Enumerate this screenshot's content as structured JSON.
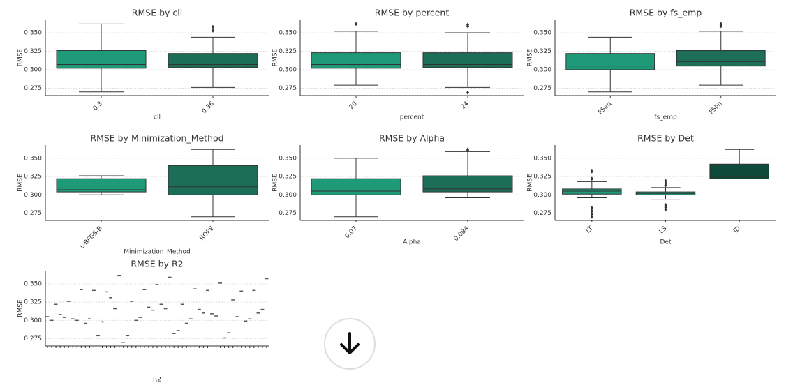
{
  "chart_data": [
    {
      "type": "box",
      "title": "RMSE by cll",
      "xlabel": "cll",
      "ylabel": "RMSE",
      "categories": [
        "0.3",
        "0.36"
      ],
      "colors": [
        "#1f9a78",
        "#1c6e56"
      ],
      "boxes": [
        {
          "whislo": 0.27,
          "q1": 0.302,
          "med": 0.307,
          "q3": 0.326,
          "whishi": 0.362,
          "fliers": []
        },
        {
          "whislo": 0.276,
          "q1": 0.303,
          "med": 0.307,
          "q3": 0.322,
          "whishi": 0.344,
          "fliers": [
            0.353,
            0.358
          ]
        }
      ],
      "ylim": [
        0.265,
        0.368
      ],
      "yticks": [
        0.275,
        {
          "value": 0.3,
          "label": "0.300"
        },
        0.325,
        {
          "value": 0.35,
          "label": "0.350"
        }
      ],
      "grid": true
    },
    {
      "type": "box",
      "title": "RMSE by percent",
      "xlabel": "percent",
      "ylabel": "RMSE",
      "categories": [
        "20",
        "24"
      ],
      "colors": [
        "#1f9a78",
        "#1c6e56"
      ],
      "boxes": [
        {
          "whislo": 0.279,
          "q1": 0.302,
          "med": 0.307,
          "q3": 0.323,
          "whishi": 0.352,
          "fliers": [
            0.362
          ]
        },
        {
          "whislo": 0.276,
          "q1": 0.303,
          "med": 0.307,
          "q3": 0.323,
          "whishi": 0.35,
          "fliers": [
            0.269,
            0.359,
            0.361
          ]
        }
      ],
      "ylim": [
        0.265,
        0.368
      ],
      "yticks": [
        0.275,
        {
          "value": 0.3,
          "label": "0.300"
        },
        0.325,
        {
          "value": 0.35,
          "label": "0.350"
        }
      ],
      "grid": true
    },
    {
      "type": "box",
      "title": "RMSE by fs_emp",
      "xlabel": "fs_emp",
      "ylabel": "RMSE",
      "categories": [
        "FSeq",
        "FSlin"
      ],
      "colors": [
        "#1f9a78",
        "#1c6e56"
      ],
      "boxes": [
        {
          "whislo": 0.27,
          "q1": 0.3,
          "med": 0.305,
          "q3": 0.322,
          "whishi": 0.344,
          "fliers": []
        },
        {
          "whislo": 0.279,
          "q1": 0.305,
          "med": 0.311,
          "q3": 0.326,
          "whishi": 0.352,
          "fliers": [
            0.359,
            0.361,
            0.362
          ]
        }
      ],
      "ylim": [
        0.265,
        0.368
      ],
      "yticks": [
        0.275,
        {
          "value": 0.3,
          "label": "0.300"
        },
        0.325,
        {
          "value": 0.35,
          "label": "0.350"
        }
      ],
      "grid": true
    },
    {
      "type": "box",
      "title": "RMSE by Minimization_Method",
      "xlabel": "Minimization_Method",
      "ylabel": "RMSE",
      "categories": [
        "L-BFGS-B",
        "ROPE"
      ],
      "colors": [
        "#1f9a78",
        "#1c6e56"
      ],
      "boxes": [
        {
          "whislo": 0.3,
          "q1": 0.304,
          "med": 0.307,
          "q3": 0.322,
          "whishi": 0.326,
          "fliers": []
        },
        {
          "whislo": 0.27,
          "q1": 0.3,
          "med": 0.311,
          "q3": 0.34,
          "whishi": 0.362,
          "fliers": []
        }
      ],
      "ylim": [
        0.265,
        0.368
      ],
      "yticks": [
        0.275,
        {
          "value": 0.3,
          "label": "0.300"
        },
        0.325,
        {
          "value": 0.35,
          "label": "0.350"
        }
      ],
      "grid": true
    },
    {
      "type": "box",
      "title": "RMSE by Alpha",
      "xlabel": "Alpha",
      "ylabel": "RMSE",
      "categories": [
        "0.07",
        "0.084"
      ],
      "colors": [
        "#1f9a78",
        "#1c6e56"
      ],
      "boxes": [
        {
          "whislo": 0.27,
          "q1": 0.3,
          "med": 0.305,
          "q3": 0.322,
          "whishi": 0.35,
          "fliers": []
        },
        {
          "whislo": 0.296,
          "q1": 0.304,
          "med": 0.308,
          "q3": 0.326,
          "whishi": 0.359,
          "fliers": [
            0.361,
            0.362
          ]
        }
      ],
      "ylim": [
        0.265,
        0.368
      ],
      "yticks": [
        0.275,
        {
          "value": 0.3,
          "label": "0.300"
        },
        0.325,
        {
          "value": 0.35,
          "label": "0.350"
        }
      ],
      "grid": true
    },
    {
      "type": "box",
      "title": "RMSE by Det",
      "xlabel": "Det",
      "ylabel": "RMSE",
      "categories": [
        "LT",
        "LS",
        "ID"
      ],
      "colors": [
        "#1f9a78",
        "#22a07e",
        "#0d4a3a"
      ],
      "boxes": [
        {
          "whislo": 0.296,
          "q1": 0.301,
          "med": 0.305,
          "q3": 0.308,
          "whishi": 0.318,
          "fliers": [
            0.27,
            0.274,
            0.278,
            0.282,
            0.322,
            0.332
          ]
        },
        {
          "whislo": 0.294,
          "q1": 0.3,
          "med": 0.302,
          "q3": 0.304,
          "whishi": 0.31,
          "fliers": [
            0.28,
            0.283,
            0.286,
            0.313,
            0.316,
            0.319
          ]
        },
        {
          "whislo": 0.322,
          "q1": 0.322,
          "med": 0.325,
          "q3": 0.342,
          "whishi": 0.362,
          "fliers": []
        }
      ],
      "ylim": [
        0.265,
        0.368
      ],
      "yticks": [
        0.275,
        {
          "value": 0.3,
          "label": "0.300"
        },
        0.325,
        {
          "value": 0.35,
          "label": "0.350"
        }
      ],
      "grid": true
    },
    {
      "type": "box",
      "title": "RMSE by R2",
      "xlabel": "R2",
      "ylabel": "RMSE",
      "categories": [
        null,
        null,
        null,
        null,
        null,
        null,
        null,
        null,
        null,
        null,
        null,
        null,
        null,
        null,
        null,
        null,
        null,
        null,
        null,
        null,
        null,
        null,
        null,
        null,
        null,
        null,
        null,
        null,
        null,
        null,
        null,
        null,
        null,
        null,
        null,
        null,
        null,
        null,
        null,
        null,
        null,
        null,
        null,
        null,
        null,
        null,
        null,
        null,
        null,
        null,
        null,
        null,
        null
      ],
      "values": [
        0.305,
        0.3,
        0.322,
        0.308,
        0.304,
        0.326,
        0.302,
        0.3,
        0.342,
        0.296,
        0.302,
        0.341,
        0.279,
        0.298,
        0.339,
        0.331,
        0.316,
        0.361,
        0.27,
        0.279,
        0.326,
        0.3,
        0.304,
        0.342,
        0.318,
        0.314,
        0.349,
        0.322,
        0.316,
        0.359,
        0.282,
        0.286,
        0.322,
        0.296,
        0.302,
        0.343,
        0.315,
        0.31,
        0.341,
        0.309,
        0.306,
        0.351,
        0.276,
        0.283,
        0.328,
        0.305,
        0.34,
        0.299,
        0.302,
        0.341,
        0.31,
        0.315,
        0.357
      ],
      "color": "#555555",
      "ylim": [
        0.265,
        0.368
      ],
      "yticks": [
        0.275,
        {
          "value": 0.3,
          "label": "0.300"
        },
        0.325,
        {
          "value": 0.35,
          "label": "0.350"
        }
      ],
      "grid": true
    }
  ]
}
